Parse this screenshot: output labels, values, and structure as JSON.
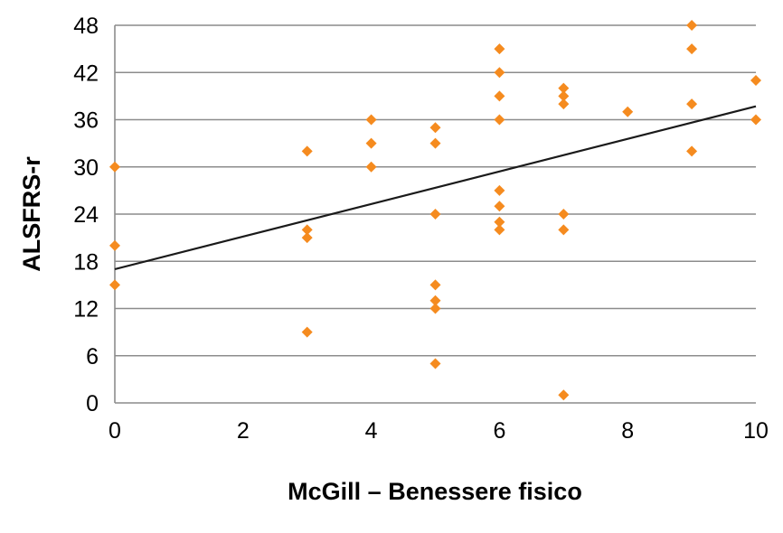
{
  "chart_data": {
    "type": "scatter",
    "title": "",
    "xlabel": "McGill – Benessere fisico",
    "ylabel": "ALSFRS-r",
    "xlim": [
      0,
      10
    ],
    "ylim": [
      0,
      48
    ],
    "x_ticks": [
      0,
      2,
      4,
      6,
      8,
      10
    ],
    "y_ticks": [
      0,
      6,
      12,
      18,
      24,
      30,
      36,
      42,
      48
    ],
    "grid": "horizontal",
    "legend": "none",
    "marker_color": "#f58b1f",
    "trendline_color": "#1a1a1a",
    "points": [
      {
        "x": 0,
        "y": 30
      },
      {
        "x": 0,
        "y": 20
      },
      {
        "x": 0,
        "y": 15
      },
      {
        "x": 3,
        "y": 32
      },
      {
        "x": 3,
        "y": 22
      },
      {
        "x": 3,
        "y": 21
      },
      {
        "x": 3,
        "y": 9
      },
      {
        "x": 4,
        "y": 36
      },
      {
        "x": 4,
        "y": 33
      },
      {
        "x": 4,
        "y": 30
      },
      {
        "x": 5,
        "y": 35
      },
      {
        "x": 5,
        "y": 33
      },
      {
        "x": 5,
        "y": 24
      },
      {
        "x": 5,
        "y": 15
      },
      {
        "x": 5,
        "y": 13
      },
      {
        "x": 5,
        "y": 12
      },
      {
        "x": 5,
        "y": 5
      },
      {
        "x": 6,
        "y": 45
      },
      {
        "x": 6,
        "y": 42
      },
      {
        "x": 6,
        "y": 39
      },
      {
        "x": 6,
        "y": 36
      },
      {
        "x": 6,
        "y": 27
      },
      {
        "x": 6,
        "y": 25
      },
      {
        "x": 6,
        "y": 23
      },
      {
        "x": 6,
        "y": 22
      },
      {
        "x": 7,
        "y": 40
      },
      {
        "x": 7,
        "y": 39
      },
      {
        "x": 7,
        "y": 38
      },
      {
        "x": 7,
        "y": 24
      },
      {
        "x": 7,
        "y": 22
      },
      {
        "x": 7,
        "y": 1
      },
      {
        "x": 8,
        "y": 37
      },
      {
        "x": 9,
        "y": 48
      },
      {
        "x": 9,
        "y": 45
      },
      {
        "x": 9,
        "y": 38
      },
      {
        "x": 9,
        "y": 32
      },
      {
        "x": 10,
        "y": 41
      },
      {
        "x": 10,
        "y": 36
      }
    ],
    "trendline": {
      "x": [
        0,
        10
      ],
      "y": [
        17,
        37.7
      ]
    }
  }
}
